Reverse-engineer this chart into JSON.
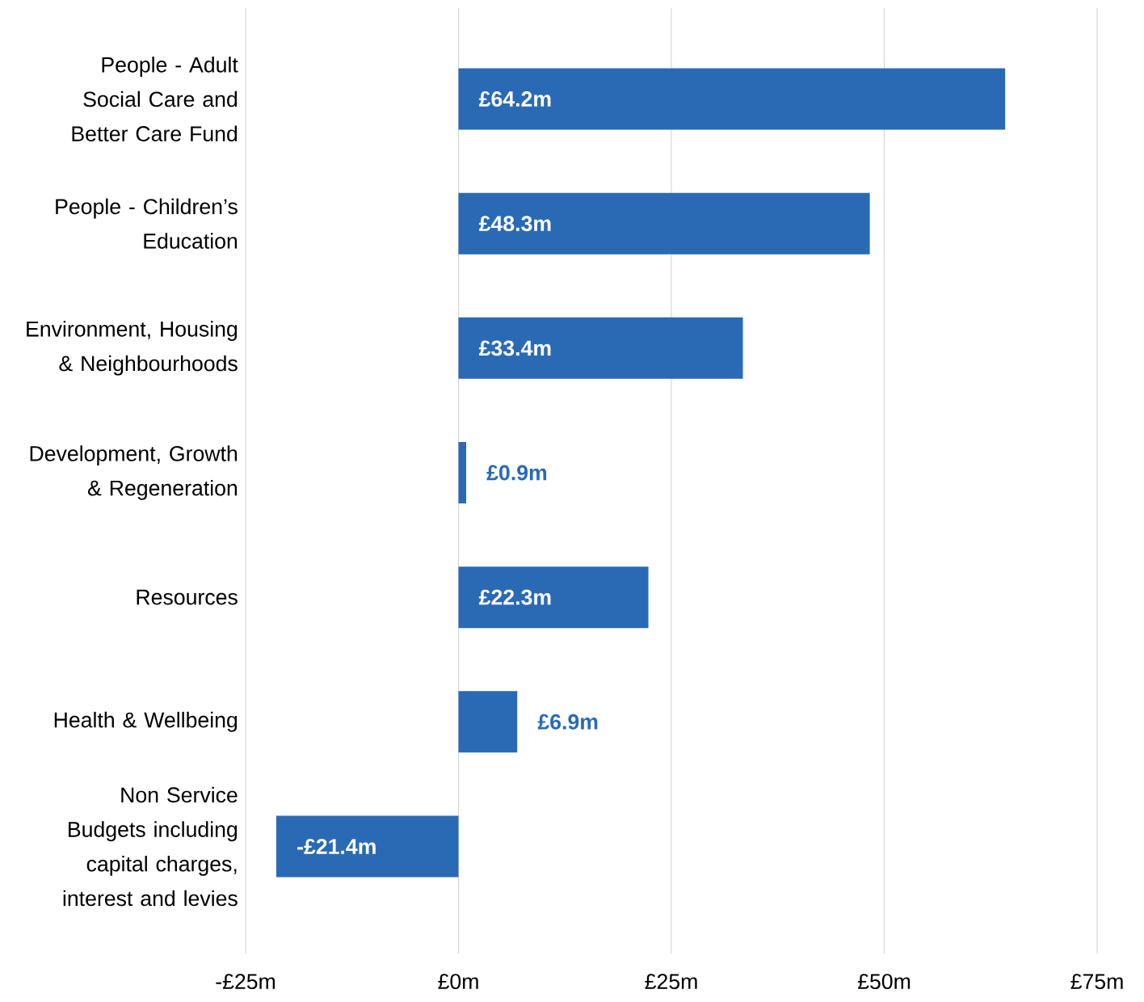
{
  "chart_data": {
    "type": "bar",
    "orientation": "horizontal",
    "categories": [
      "People - Adult Social Care and Better Care Fund",
      "People - Children’s Education",
      "Environment, Housing & Neighbourhoods",
      "Development, Growth & Regeneration",
      "Resources",
      "Health & Wellbeing",
      "Non Service Budgets including capital charges, interest and levies"
    ],
    "values": [
      64.2,
      48.3,
      33.4,
      0.9,
      22.3,
      6.9,
      -21.4
    ],
    "value_labels": [
      "£64.2m",
      "£48.3m",
      "£33.4m",
      "£0.9m",
      "£22.3m",
      "£6.9m",
      "-£21.4m"
    ],
    "color": "#2a6ab5",
    "xlim": [
      -25,
      75
    ],
    "xticks": [
      {
        "value": -25,
        "label": "-£25m"
      },
      {
        "value": 0,
        "label": "£0m"
      },
      {
        "value": 25,
        "label": "£25m"
      },
      {
        "value": 50,
        "label": "£50m"
      },
      {
        "value": 75,
        "label": "£75m"
      }
    ],
    "grid": "x"
  }
}
